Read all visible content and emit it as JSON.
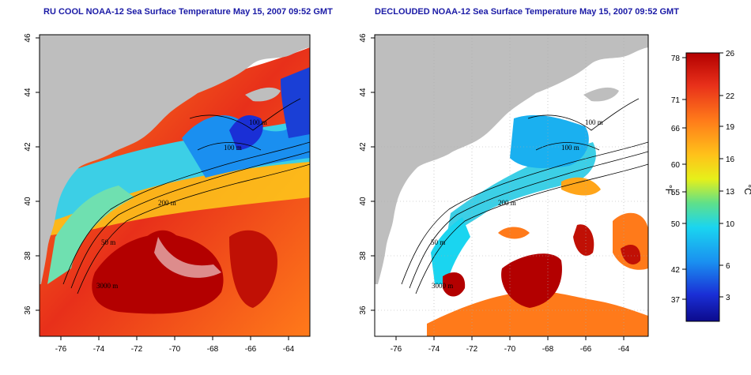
{
  "titles": {
    "left": "RU COOL NOAA-12 Sea Surface Temperature May 15, 2007 09:52 GMT",
    "right": "DECLOUDED NOAA-12 Sea Surface Temperature May 15, 2007 09:52 GMT"
  },
  "axes": {
    "lon_ticks": [
      "-76",
      "-74",
      "-72",
      "-70",
      "-68",
      "-66",
      "-64"
    ],
    "lat_ticks": [
      "46",
      "44",
      "42",
      "40",
      "38",
      "36"
    ]
  },
  "contour_labels": [
    "100 m",
    "100 m",
    "200 m",
    "50 m",
    "200 m",
    "50 m",
    "3000 m"
  ],
  "colorbar": {
    "fahrenheit_ticks": [
      "78",
      "71",
      "66",
      "60",
      "55",
      "50",
      "42",
      "37"
    ],
    "celsius_ticks": [
      "26",
      "22",
      "19",
      "16",
      "13",
      "10",
      "6",
      "3"
    ],
    "fahrenheit_unit": "°F",
    "celsius_unit": "°C"
  },
  "colors": {
    "land": "#bebebe",
    "title": "#1a1aa6",
    "ramp": [
      "#b30000",
      "#e8301a",
      "#ff7a1a",
      "#ffc21a",
      "#e6f01a",
      "#5fe08a",
      "#1ad5f0",
      "#1a8ff0",
      "#1a2fd6",
      "#0c0a8c"
    ]
  }
}
